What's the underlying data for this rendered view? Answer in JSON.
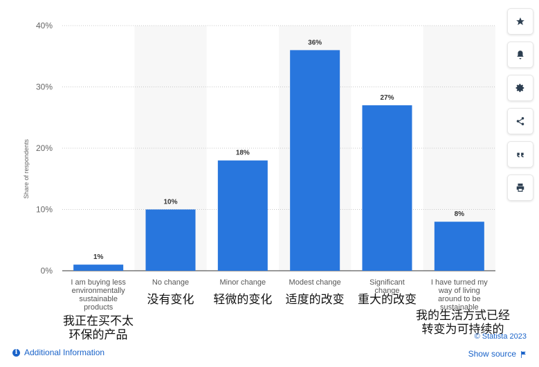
{
  "chart_data": {
    "type": "bar",
    "categories": [
      "I am buying less environmentally sustainable products",
      "No change",
      "Minor change",
      "Modest change",
      "Significant change",
      "I have turned my way of living around to be sustainable"
    ],
    "category_lines": [
      [
        "I am buying less",
        "environmentally",
        "sustainable",
        "products"
      ],
      [
        "No change"
      ],
      [
        "Minor change"
      ],
      [
        "Modest change"
      ],
      [
        "Significant",
        "change"
      ],
      [
        "I have turned my",
        "way of living",
        "around to be",
        "sustainable"
      ]
    ],
    "chinese_labels": [
      [
        "我正在买不太",
        "环保的产品"
      ],
      [
        "没有变化"
      ],
      [
        "轻微的变化"
      ],
      [
        "适度的改变"
      ],
      [
        "重大的改变"
      ],
      [
        "我的生活方式已经",
        "转变为可持续的"
      ]
    ],
    "values": [
      1,
      10,
      18,
      36,
      27,
      8
    ],
    "data_labels": [
      "1%",
      "10%",
      "18%",
      "36%",
      "27%",
      "8%"
    ],
    "ylabel": "Share of respondents",
    "yticks": [
      "0%",
      "10%",
      "20%",
      "30%",
      "40%"
    ],
    "ylim": [
      0,
      40
    ],
    "bar_color": "#2876dd",
    "band_color": "#f7f7f7",
    "grid": true
  },
  "toolbar": {
    "icons": [
      "star-icon",
      "bell-icon",
      "gear-icon",
      "share-icon",
      "quote-icon",
      "print-icon"
    ]
  },
  "footer": {
    "additional_info": "Additional Information",
    "copyright": "© Statista 2023",
    "show_source": "Show source"
  }
}
